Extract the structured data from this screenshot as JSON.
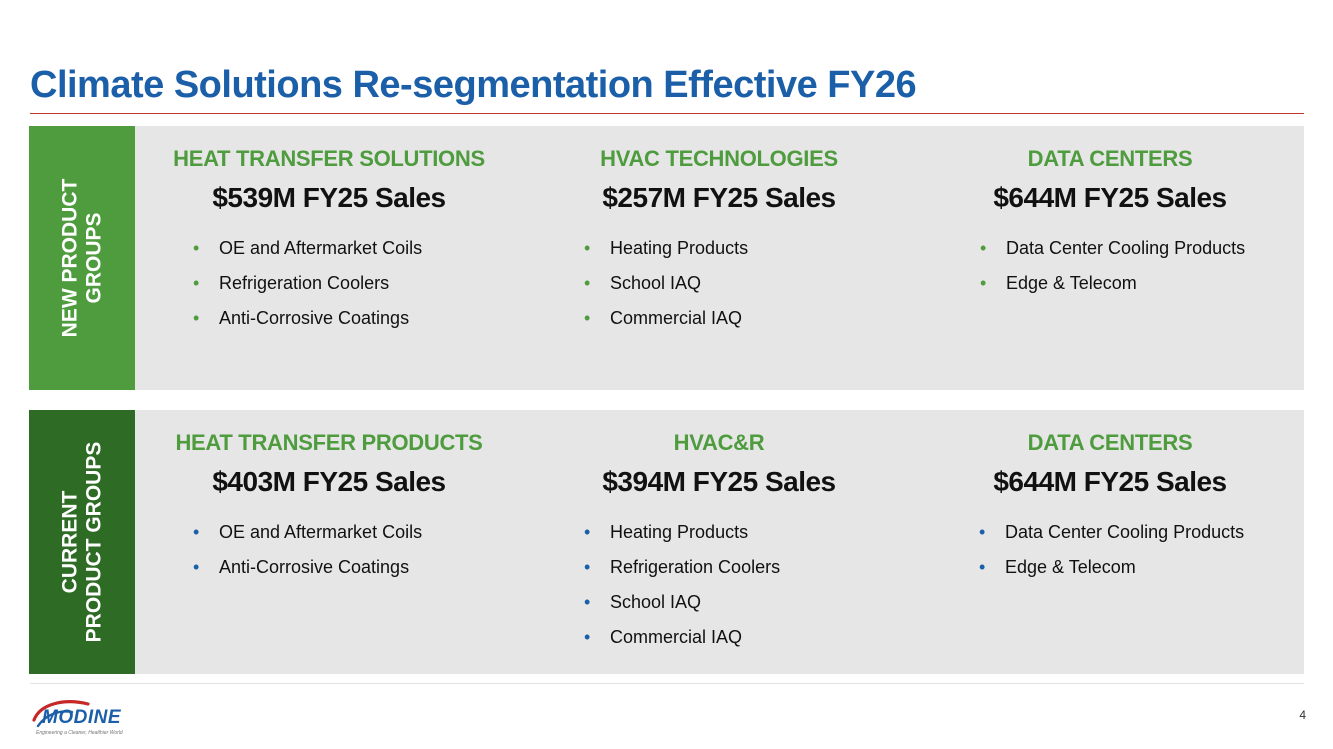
{
  "title": "Climate Solutions Re-segmentation Effective FY26",
  "new_groups": {
    "side_label_line1": "NEW PRODUCT",
    "side_label_line2": "GROUPS",
    "columns": [
      {
        "heading": "HEAT TRANSFER SOLUTIONS",
        "sales": "$539M FY25 Sales",
        "items": [
          "OE and Aftermarket Coils",
          "Refrigeration Coolers",
          "Anti-Corrosive Coatings"
        ]
      },
      {
        "heading": "HVAC TECHNOLOGIES",
        "sales": "$257M FY25 Sales",
        "items": [
          "Heating Products",
          "School IAQ",
          "Commercial IAQ"
        ]
      },
      {
        "heading": "DATA CENTERS",
        "sales": "$644M FY25 Sales",
        "items": [
          "Data Center Cooling Products",
          "Edge & Telecom"
        ]
      }
    ]
  },
  "current_groups": {
    "side_label_line1": "CURRENT",
    "side_label_line2": "PRODUCT GROUPS",
    "columns": [
      {
        "heading": "HEAT TRANSFER PRODUCTS",
        "sales": "$403M FY25 Sales",
        "items": [
          "OE and Aftermarket Coils",
          "Anti-Corrosive Coatings"
        ]
      },
      {
        "heading": "HVAC&R",
        "sales": "$394M FY25 Sales",
        "items": [
          "Heating Products",
          "Refrigeration Coolers",
          "School IAQ",
          "Commercial IAQ"
        ]
      },
      {
        "heading": "DATA CENTERS",
        "sales": "$644M FY25 Sales",
        "items": [
          "Data Center Cooling Products",
          "Edge & Telecom"
        ]
      }
    ]
  },
  "bullet_glyph": "•",
  "footer": {
    "logo_text": "MODINE",
    "logo_tagline": "Engineering a Cleaner, Healthier World",
    "logo_icon": "modine-swoosh-logo",
    "page_number": "4"
  },
  "colors": {
    "title_blue": "#1B5FA8",
    "green_light": "#4E9C3E",
    "green_dark": "#2E6B25",
    "panel_gray": "#E6E6E6",
    "logo_red": "#C62828"
  }
}
